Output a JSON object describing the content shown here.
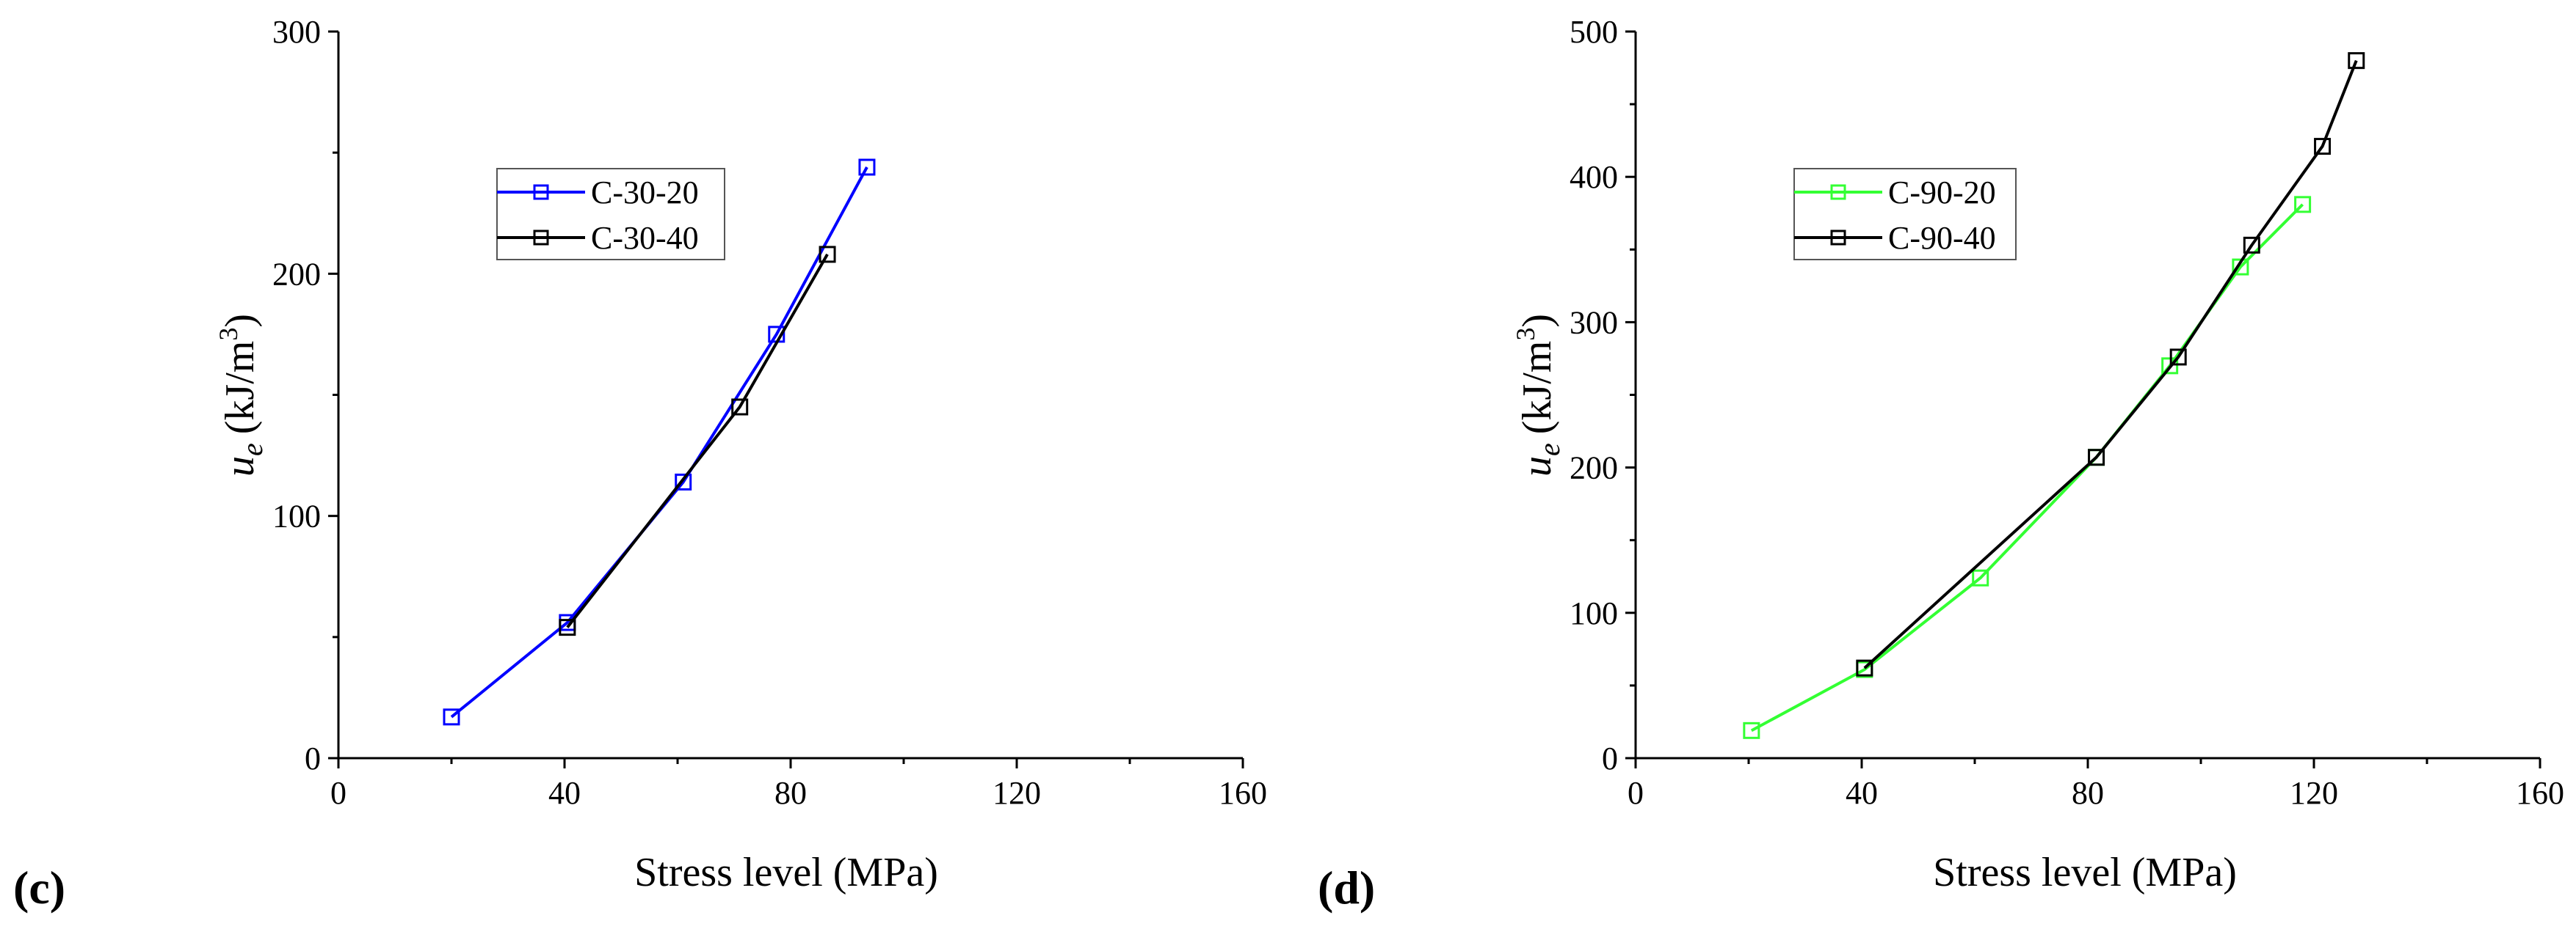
{
  "chart_data": [
    {
      "type": "line",
      "panel_label": "(c)",
      "xlabel": "Stress level (MPa)",
      "ylabel_main": "u",
      "ylabel_sub": "e",
      "ylabel_units": "(kJ/m",
      "ylabel_sup": "3",
      "ylabel_close": ")",
      "xlim": [
        0,
        160
      ],
      "ylim": [
        0,
        300
      ],
      "xticks": [
        0,
        40,
        80,
        120,
        160
      ],
      "yticks": [
        0,
        100,
        200,
        300
      ],
      "legend_position": "upper-left",
      "series": [
        {
          "name": "C-30-20",
          "color": "#0000ff",
          "x": [
            20,
            40.5,
            61,
            77.5,
            93.5
          ],
          "y": [
            17,
            56,
            114,
            175,
            244
          ]
        },
        {
          "name": "C-30-40",
          "color": "#000000",
          "x": [
            40.5,
            71,
            86.5
          ],
          "y": [
            54,
            145,
            208
          ]
        }
      ]
    },
    {
      "type": "line",
      "panel_label": "(d)",
      "xlabel": "Stress level (MPa)",
      "ylabel_main": "u",
      "ylabel_sub": "e",
      "ylabel_units": "(kJ/m",
      "ylabel_sup": "3",
      "ylabel_close": ")",
      "xlim": [
        0,
        160
      ],
      "ylim": [
        0,
        500
      ],
      "xticks": [
        0,
        40,
        80,
        120,
        160
      ],
      "yticks": [
        0,
        100,
        200,
        300,
        400,
        500
      ],
      "legend_position": "upper-left",
      "series": [
        {
          "name": "C-90-20",
          "color": "#33ff33",
          "x": [
            20.5,
            40.5,
            61,
            81.5,
            94.5,
            107,
            118
          ],
          "y": [
            19,
            61,
            124,
            207,
            270,
            338,
            381
          ]
        },
        {
          "name": "C-90-40",
          "color": "#000000",
          "x": [
            40.5,
            81.5,
            96,
            109,
            121.5,
            127.5
          ],
          "y": [
            62,
            207,
            276,
            353,
            421,
            480
          ]
        }
      ]
    }
  ]
}
